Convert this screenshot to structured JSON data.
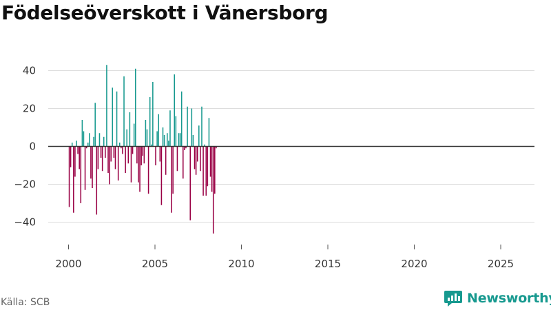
{
  "header": {
    "title": "Födelseöverskott i Vänersborg"
  },
  "footer": {
    "source": "Källa: SCB",
    "brand": "Newsworthy"
  },
  "colors": {
    "positive": "#17998f",
    "negative": "#990044",
    "grid": "#dddddd",
    "axis": "#333333",
    "tick_text": "#333333"
  },
  "chart_data": {
    "type": "bar",
    "title": "Födelseöverskott i Vänersborg",
    "xlabel": "",
    "ylabel": "",
    "ylim": [
      -50,
      50
    ],
    "xlim": [
      1998.6,
      2026.6
    ],
    "yticks": [
      -40,
      -20,
      0,
      20,
      40
    ],
    "xticks": [
      2000,
      2005,
      2010,
      2015,
      2020,
      2025
    ],
    "x_tick_labels": [
      "2000",
      "2005",
      "2010",
      "2015",
      "2020",
      "2025"
    ],
    "grid": true,
    "legend": "none",
    "period": "monthly",
    "start": 2000,
    "values": [
      -32,
      -11,
      2,
      -35,
      -16,
      3,
      -4,
      -12,
      -30,
      14,
      8,
      -23,
      -1,
      2,
      7,
      -17,
      -22,
      5,
      23,
      -36,
      -12,
      7,
      -6,
      -13,
      5,
      -6,
      43,
      -14,
      -20,
      -8,
      31,
      -6,
      -12,
      29,
      -18,
      2,
      -1,
      -4,
      37,
      -14,
      9,
      -9,
      18,
      -19,
      -4,
      12,
      41,
      -9,
      -19,
      -24,
      -10,
      -5,
      -9,
      14,
      9,
      -25,
      26,
      1,
      34,
      0,
      -10,
      8,
      17,
      -8,
      -31,
      10,
      6,
      -15,
      7,
      3,
      19,
      -35,
      -25,
      38,
      16,
      -13,
      7,
      7,
      29,
      -17,
      -2,
      -1,
      21,
      0,
      -39,
      20,
      6,
      -12,
      -15,
      -8,
      11,
      -13,
      21,
      -26,
      1,
      -26,
      -21,
      15,
      -16,
      -24,
      -46,
      -25,
      -1
    ]
  }
}
